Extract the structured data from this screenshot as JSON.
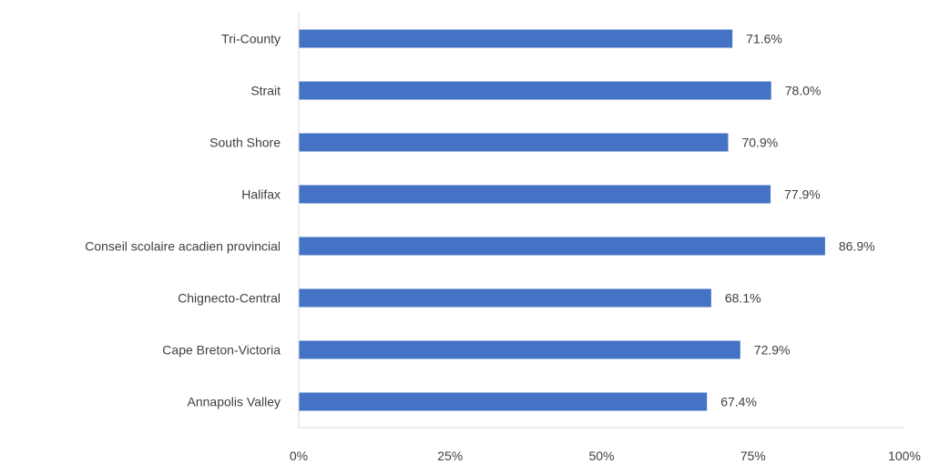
{
  "chart_data": {
    "type": "bar",
    "orientation": "horizontal",
    "categories": [
      "Tri-County",
      "Strait",
      "South Shore",
      "Halifax",
      "Conseil scolaire acadien provincial",
      "Chignecto-Central",
      "Cape Breton-Victoria",
      "Annapolis Valley"
    ],
    "values": [
      71.6,
      78.0,
      70.9,
      77.9,
      86.9,
      68.1,
      72.9,
      67.4
    ],
    "value_labels": [
      "71.6%",
      "78.0%",
      "70.9%",
      "77.9%",
      "86.9%",
      "68.1%",
      "72.9%",
      "67.4%"
    ],
    "xlim": [
      0,
      100
    ],
    "xticks": [
      0,
      25,
      50,
      75,
      100
    ],
    "xtick_labels": [
      "0%",
      "25%",
      "50%",
      "75%",
      "100%"
    ],
    "title": "",
    "xlabel": "",
    "ylabel": "",
    "grid": false,
    "legend": "none",
    "bar_color": "#4472c4"
  }
}
